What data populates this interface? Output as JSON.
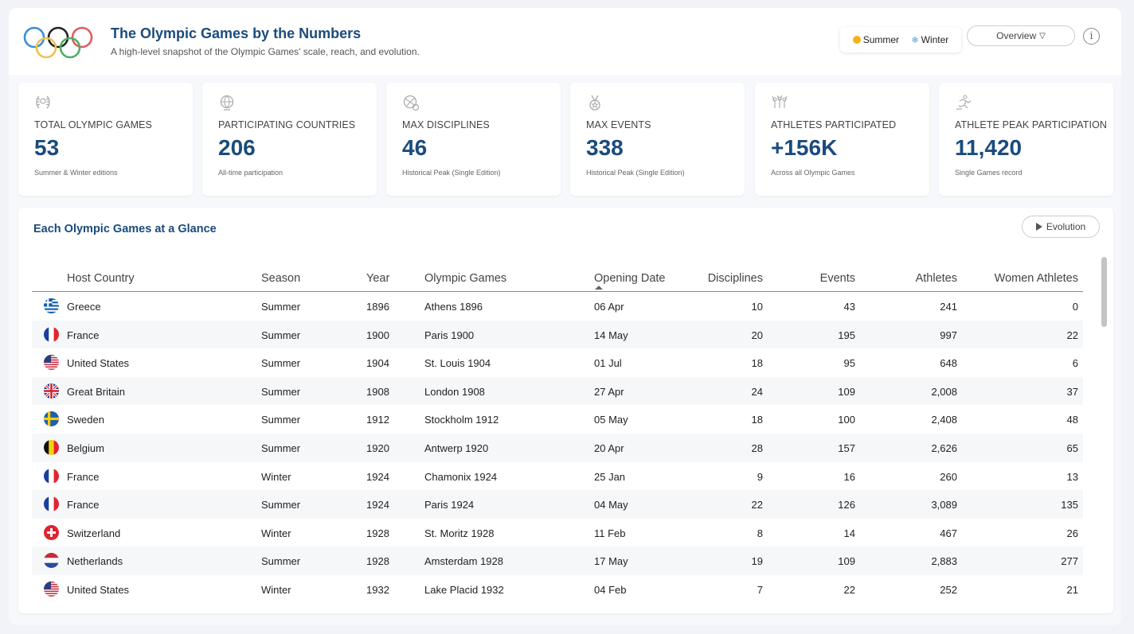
{
  "header": {
    "title": "The Olympic Games by the Numbers",
    "subtitle": "A high-level snapshot of the Olympic Games' scale, reach, and evolution.",
    "seasons": [
      {
        "label": "Summer",
        "icon": "sun-icon"
      },
      {
        "label": "Winter",
        "icon": "snowflake-icon"
      }
    ],
    "view_select": "Overview",
    "info_label": "i"
  },
  "kpis": [
    {
      "icon": "laurel-icon",
      "label": "TOTAL OLYMPIC GAMES",
      "value": "53",
      "note": "Summer & Winter editions"
    },
    {
      "icon": "globe-icon",
      "label": "PARTICIPATING COUNTRIES",
      "value": "206",
      "note": "All-time participation"
    },
    {
      "icon": "sports-balls-icon",
      "label": "MAX DISCIPLINES",
      "value": "46",
      "note": "Historical Peak (Single Edition)"
    },
    {
      "icon": "medal-icon",
      "label": "MAX EVENTS",
      "value": "338",
      "note": "Historical Peak (Single Edition)"
    },
    {
      "icon": "crowd-icon",
      "label": "ATHLETES PARTICIPATED",
      "value": "+156K",
      "note": "Across all Olympic Games"
    },
    {
      "icon": "runner-icon",
      "label": "ATHLETE PEAK PARTICIPATION",
      "value": "11,420",
      "note": "Single Games record"
    }
  ],
  "table": {
    "title": "Each Olympic Games at a Glance",
    "evolution_label": "Evolution",
    "columns": [
      "Host Country",
      "Season",
      "Year",
      "Olympic Games",
      "Opening Date",
      "Disciplines",
      "Events",
      "Athletes",
      "Women Athletes"
    ],
    "rows": [
      {
        "flag": "greece",
        "country": "Greece",
        "season": "Summer",
        "year": "1896",
        "games": "Athens 1896",
        "date": "06 Apr",
        "disciplines": "10",
        "events": "43",
        "athletes": "241",
        "women": "0"
      },
      {
        "flag": "france",
        "country": "France",
        "season": "Summer",
        "year": "1900",
        "games": "Paris 1900",
        "date": "14 May",
        "disciplines": "20",
        "events": "195",
        "athletes": "997",
        "women": "22"
      },
      {
        "flag": "usa",
        "country": "United States",
        "season": "Summer",
        "year": "1904",
        "games": "St. Louis 1904",
        "date": "01 Jul",
        "disciplines": "18",
        "events": "95",
        "athletes": "648",
        "women": "6"
      },
      {
        "flag": "uk",
        "country": "Great Britain",
        "season": "Summer",
        "year": "1908",
        "games": "London 1908",
        "date": "27 Apr",
        "disciplines": "24",
        "events": "109",
        "athletes": "2,008",
        "women": "37"
      },
      {
        "flag": "sweden",
        "country": "Sweden",
        "season": "Summer",
        "year": "1912",
        "games": "Stockholm 1912",
        "date": "05 May",
        "disciplines": "18",
        "events": "100",
        "athletes": "2,408",
        "women": "48"
      },
      {
        "flag": "belgium",
        "country": "Belgium",
        "season": "Summer",
        "year": "1920",
        "games": "Antwerp 1920",
        "date": "20 Apr",
        "disciplines": "28",
        "events": "157",
        "athletes": "2,626",
        "women": "65"
      },
      {
        "flag": "france",
        "country": "France",
        "season": "Winter",
        "year": "1924",
        "games": "Chamonix 1924",
        "date": "25 Jan",
        "disciplines": "9",
        "events": "16",
        "athletes": "260",
        "women": "13"
      },
      {
        "flag": "france",
        "country": "France",
        "season": "Summer",
        "year": "1924",
        "games": "Paris 1924",
        "date": "04 May",
        "disciplines": "22",
        "events": "126",
        "athletes": "3,089",
        "women": "135"
      },
      {
        "flag": "switzerland",
        "country": "Switzerland",
        "season": "Winter",
        "year": "1928",
        "games": "St. Moritz 1928",
        "date": "11 Feb",
        "disciplines": "8",
        "events": "14",
        "athletes": "467",
        "women": "26"
      },
      {
        "flag": "netherlands",
        "country": "Netherlands",
        "season": "Summer",
        "year": "1928",
        "games": "Amsterdam 1928",
        "date": "17 May",
        "disciplines": "19",
        "events": "109",
        "athletes": "2,883",
        "women": "277"
      },
      {
        "flag": "usa",
        "country": "United States",
        "season": "Winter",
        "year": "1932",
        "games": "Lake Placid 1932",
        "date": "04 Feb",
        "disciplines": "7",
        "events": "22",
        "athletes": "252",
        "women": "21"
      }
    ]
  },
  "colors": {
    "brand": "#1b4b7d",
    "ring_blue": "#3a8fd6",
    "ring_yellow": "#f2c14e",
    "ring_black": "#222222",
    "ring_green": "#4caf62",
    "ring_red": "#e05a60"
  }
}
